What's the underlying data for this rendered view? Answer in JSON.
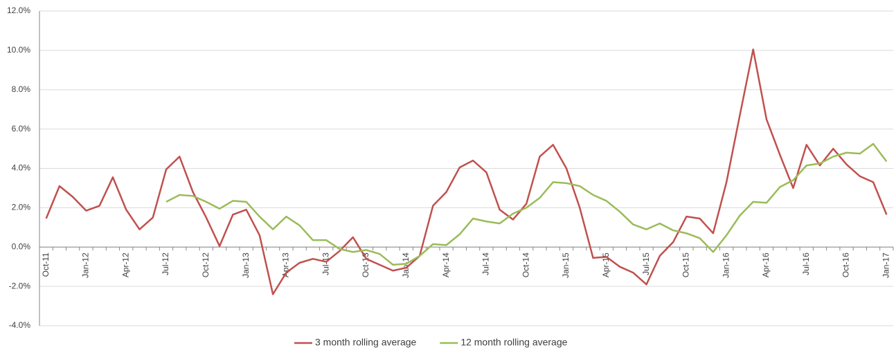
{
  "chart_data": {
    "type": "line",
    "categories": [
      "Oct-11",
      null,
      null,
      "Jan-12",
      null,
      null,
      "Apr-12",
      null,
      null,
      "Jul-12",
      null,
      null,
      "Oct-12",
      null,
      null,
      "Jan-13",
      null,
      null,
      "Apr-13",
      null,
      null,
      "Jul-13",
      null,
      null,
      "Oct-13",
      null,
      null,
      "Jan-14",
      null,
      null,
      "Apr-14",
      null,
      null,
      "Jul-14",
      null,
      null,
      "Oct-14",
      null,
      null,
      "Jan-15",
      null,
      null,
      "Apr-15",
      null,
      null,
      "Jul-15",
      null,
      null,
      "Oct-15",
      null,
      null,
      "Jan-16",
      null,
      null,
      "Apr-16",
      null,
      null,
      "Jul-16",
      null,
      null,
      "Oct-16",
      null,
      null,
      "Jan-17"
    ],
    "series": [
      {
        "name": "3 month rolling average",
        "color": "#c0504d",
        "values": [
          1.45,
          3.1,
          2.55,
          1.85,
          2.1,
          3.55,
          1.9,
          0.9,
          1.5,
          3.95,
          4.6,
          2.8,
          1.5,
          0.05,
          1.65,
          1.9,
          0.6,
          -2.4,
          -1.3,
          -0.8,
          -0.6,
          -0.75,
          -0.2,
          0.5,
          -0.6,
          -0.9,
          -1.2,
          -1.05,
          -0.45,
          2.1,
          2.8,
          4.05,
          4.4,
          3.8,
          1.9,
          1.4,
          2.2,
          4.6,
          5.2,
          4.0,
          2.0,
          -0.55,
          -0.5,
          -1.0,
          -1.3,
          -1.9,
          -0.45,
          0.25,
          1.55,
          1.45,
          0.7,
          3.3,
          6.7,
          10.05,
          6.5,
          4.7,
          3.0,
          5.2,
          4.15,
          5.0,
          4.2,
          3.6,
          3.3,
          1.65
        ]
      },
      {
        "name": "12 month rolling average",
        "color": "#9bbb59",
        "values": [
          null,
          null,
          null,
          null,
          null,
          null,
          null,
          null,
          null,
          2.3,
          2.65,
          2.6,
          2.3,
          1.95,
          2.35,
          2.3,
          1.55,
          0.9,
          1.55,
          1.1,
          0.35,
          0.35,
          -0.1,
          -0.25,
          -0.15,
          -0.35,
          -0.9,
          -0.85,
          -0.45,
          0.15,
          0.1,
          0.65,
          1.45,
          1.3,
          1.2,
          1.7,
          2.0,
          2.5,
          3.3,
          3.25,
          3.1,
          2.65,
          2.35,
          1.8,
          1.15,
          0.9,
          1.2,
          0.85,
          0.7,
          0.45,
          -0.25,
          0.6,
          1.6,
          2.3,
          2.25,
          3.05,
          3.4,
          4.15,
          4.25,
          4.6,
          4.8,
          4.75,
          5.25,
          4.35
        ]
      }
    ],
    "ylim": [
      -4,
      12
    ],
    "yticks": [
      {
        "value": -4,
        "label": "-4.0%"
      },
      {
        "value": -2,
        "label": "-2.0%"
      },
      {
        "value": 0,
        "label": "0.0%"
      },
      {
        "value": 2,
        "label": "2.0%"
      },
      {
        "value": 4,
        "label": "4.0%"
      },
      {
        "value": 6,
        "label": "6.0%"
      },
      {
        "value": 8,
        "label": "8.0%"
      },
      {
        "value": 10,
        "label": "10.0%"
      },
      {
        "value": 12,
        "label": "12.0%"
      }
    ],
    "grid": true,
    "legend": "bottom"
  }
}
